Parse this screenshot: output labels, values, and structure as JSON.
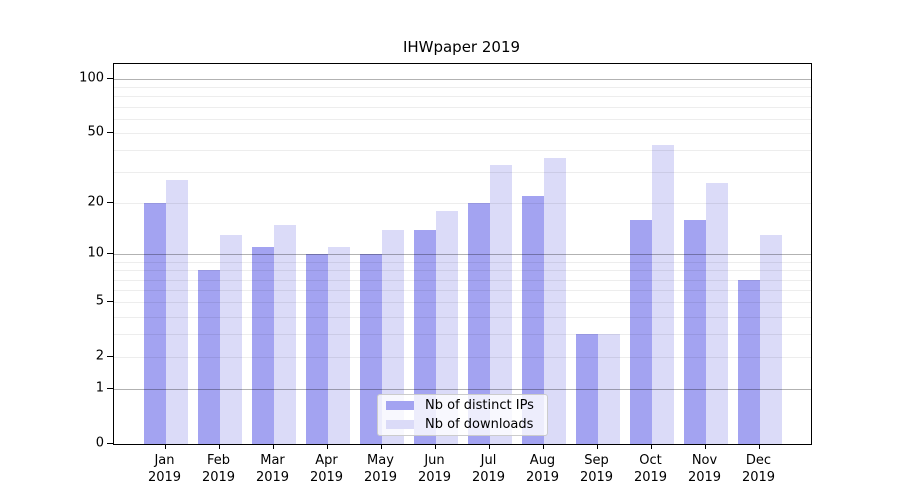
{
  "figure": {
    "title": "IHWpaper 2019"
  },
  "chart_data": {
    "type": "bar",
    "title": "IHWpaper 2019",
    "categories": [
      "Jan 2019",
      "Feb 2019",
      "Mar 2019",
      "Apr 2019",
      "May 2019",
      "Jun 2019",
      "Jul 2019",
      "Aug 2019",
      "Sep 2019",
      "Oct 2019",
      "Nov 2019",
      "Dec 2019"
    ],
    "series": [
      {
        "name": "Nb of distinct IPs",
        "color": "#a3a3f1",
        "values": [
          20,
          8,
          11,
          10,
          10,
          14,
          20,
          22,
          3,
          16,
          16,
          7
        ]
      },
      {
        "name": "Nb of downloads",
        "color": "#dbdbf8",
        "values": [
          27,
          13,
          15,
          11,
          14,
          18,
          33,
          36,
          3,
          43,
          26,
          13
        ]
      }
    ],
    "xlabel": "",
    "ylabel": "",
    "yaxis": {
      "scale": "log1p",
      "tick_values": [
        0,
        1,
        2,
        5,
        10,
        20,
        50,
        100
      ],
      "tick_labels": [
        "0",
        "1",
        "2",
        "5",
        "10",
        "20",
        "50",
        "100"
      ],
      "grid_major": [
        1,
        10,
        100
      ],
      "grid_minor": [
        2,
        3,
        4,
        5,
        6,
        7,
        8,
        9,
        20,
        30,
        40,
        50,
        60,
        70,
        80,
        90
      ],
      "ylim": [
        0,
        121
      ]
    },
    "legend": {
      "position": "bottom-center",
      "entries": [
        "Nb of distinct IPs",
        "Nb of downloads"
      ]
    },
    "grid": true
  }
}
